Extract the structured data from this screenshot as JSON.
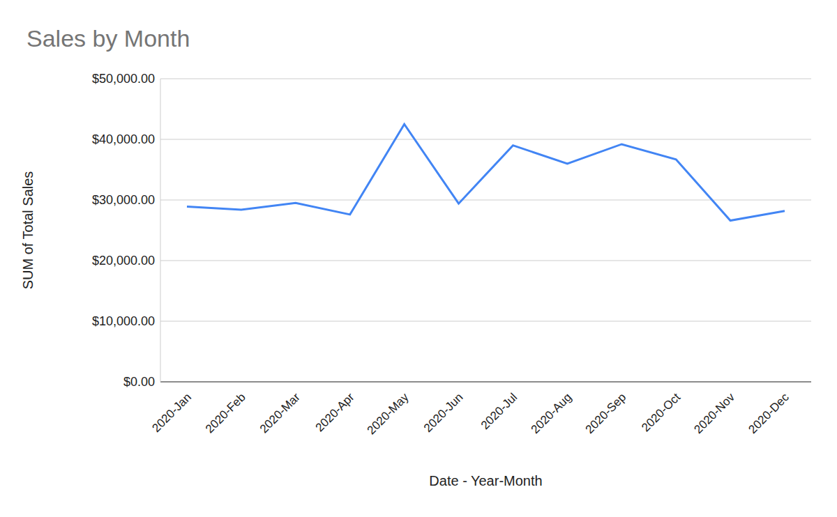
{
  "chart_data": {
    "type": "line",
    "title": "Sales by Month",
    "x_label": "Date - Year-Month",
    "y_label": "SUM of Total Sales",
    "categories": [
      "2020-Jan",
      "2020-Feb",
      "2020-Mar",
      "2020-Apr",
      "2020-May",
      "2020-Jun",
      "2020-Jul",
      "2020-Aug",
      "2020-Sep",
      "2020-Oct",
      "2020-Nov",
      "2020-Dec"
    ],
    "values": [
      28900,
      28400,
      29500,
      27600,
      42500,
      29400,
      39000,
      36000,
      39200,
      36700,
      26600,
      28200
    ],
    "color": "#4285f4",
    "ylim": [
      0,
      50000
    ],
    "yticks": [
      {
        "value": 0,
        "label": "$0.00"
      },
      {
        "value": 10000,
        "label": "$10,000.00"
      },
      {
        "value": 20000,
        "label": "$20,000.00"
      },
      {
        "value": 30000,
        "label": "$30,000.00"
      },
      {
        "value": 40000,
        "label": "$40,000.00"
      },
      {
        "value": 50000,
        "label": "$50,000.00"
      }
    ],
    "grid": true
  }
}
